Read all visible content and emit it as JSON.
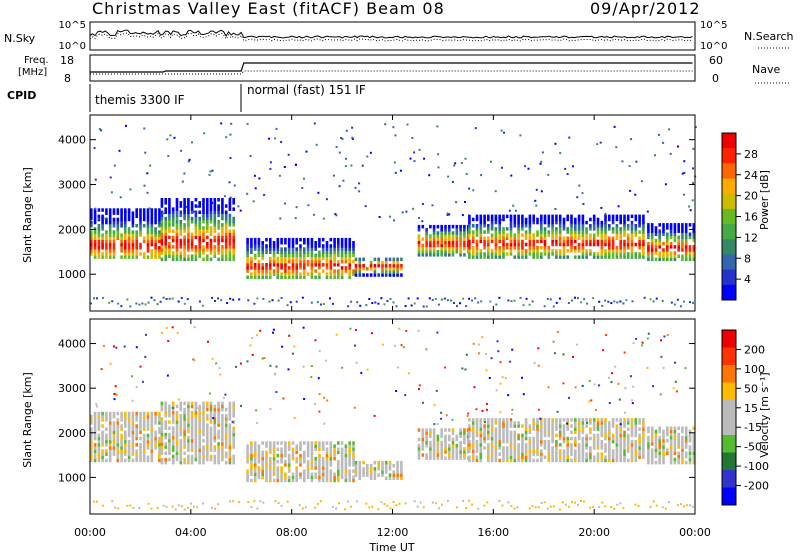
{
  "chart_data": {
    "type": "heatmap",
    "title": "Christmas Valley East (fitACF) Beam 08",
    "date": "09/Apr/2012",
    "x_axis": {
      "label": "Time UT",
      "ticks": [
        "00:00",
        "04:00",
        "08:00",
        "12:00",
        "16:00",
        "20:00",
        "00:00"
      ],
      "range_hours": [
        0,
        24
      ]
    },
    "top_panels": {
      "noise": {
        "left_label": "N.Sky",
        "left_ticks": [
          "10^5",
          "10^0"
        ],
        "right_label": "N.Search",
        "right_ticks": [
          "10^5",
          "10^0"
        ]
      },
      "frequency": {
        "left_label": "Freq.",
        "left_unit": "[MHz]",
        "left_ticks": [
          "18",
          "8"
        ],
        "right_label": "Nave",
        "right_ticks": [
          "60",
          "0"
        ]
      },
      "cpid": {
        "label": "CPID",
        "programs": [
          {
            "name": "themis 3300 IF",
            "start_h": 0.0,
            "end_h": 6.0
          },
          {
            "name": "normal (fast) 151 IF",
            "start_h": 6.0,
            "end_h": 24.0
          }
        ]
      }
    },
    "panels": [
      {
        "name": "power",
        "ylabel": "Slant Range [km]",
        "ylim": [
          180,
          4550
        ],
        "yticks": [
          "4000",
          "3000",
          "2000",
          "1000"
        ],
        "colorbar": {
          "label": "Power [dB]",
          "ticks": [
            "28",
            "24",
            "20",
            "16",
            "12",
            "8",
            "4"
          ],
          "colors": [
            "#0000ff",
            "#2233cc",
            "#3366aa",
            "#338866",
            "#44aa44",
            "#66bb22",
            "#ccbb00",
            "#ffaa00",
            "#ff6600",
            "#ff2200",
            "#ee0000"
          ]
        }
      },
      {
        "name": "velocity",
        "ylabel": "Slant Range [km]",
        "ylim": [
          180,
          4550
        ],
        "yticks": [
          "4000",
          "3000",
          "2000",
          "1000"
        ],
        "colorbar": {
          "label": "Velocity [m s⁻¹]",
          "ticks": [
            "200",
            "100",
            "50",
            "15",
            "-15",
            "-50",
            "-100",
            "-200"
          ],
          "colors": [
            "#0000ff",
            "#3333cc",
            "#227733",
            "#55bb33",
            "#bbbbbb",
            "#bbbbbb",
            "#ffbb00",
            "#ff7700",
            "#ff3300",
            "#ee0000"
          ]
        }
      }
    ],
    "echo_bands": [
      {
        "start_h": 0.0,
        "end_h": 2.8,
        "range_km": [
          1350,
          2450
        ],
        "core_km": 1600
      },
      {
        "start_h": 2.8,
        "end_h": 5.8,
        "range_km": [
          1300,
          2700
        ],
        "core_km": 1700
      },
      {
        "start_h": 6.2,
        "end_h": 10.5,
        "range_km": [
          900,
          1800
        ],
        "core_km": 1150
      },
      {
        "start_h": 10.5,
        "end_h": 12.4,
        "range_km": [
          950,
          1350
        ],
        "core_km": 1150
      },
      {
        "start_h": 13.0,
        "end_h": 15.0,
        "range_km": [
          1400,
          2100
        ],
        "core_km": 1650
      },
      {
        "start_h": 15.0,
        "end_h": 22.0,
        "range_km": [
          1350,
          2300
        ],
        "core_km": 1650
      },
      {
        "start_h": 22.1,
        "end_h": 24.0,
        "range_km": [
          1300,
          2100
        ],
        "core_km": 1550
      }
    ]
  }
}
